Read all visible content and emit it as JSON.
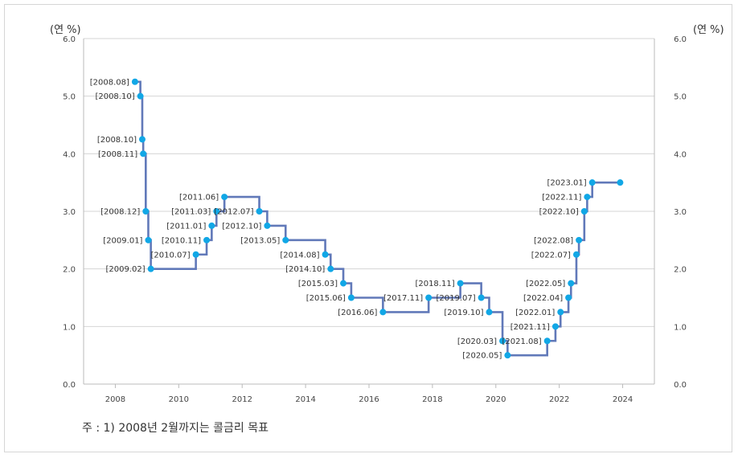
{
  "unit_left": "(연 %)",
  "unit_right": "(연 %)",
  "footnote": "주 : 1) 2008년 2월까지는 콜금리 목표",
  "colors": {
    "line": "#6179b9",
    "point": "#11a7e6",
    "grid": "#d4d4d4",
    "axis": "#bbbbbb"
  },
  "chart_data": {
    "type": "line",
    "step": true,
    "xlim": [
      2007,
      2025
    ],
    "ylim": [
      0,
      6
    ],
    "x_ticks": [
      "2008",
      "2010",
      "2012",
      "2014",
      "2016",
      "2018",
      "2020",
      "2022",
      "2024"
    ],
    "y_ticks": [
      "0.0",
      "1.0",
      "2.0",
      "3.0",
      "4.0",
      "5.0",
      "6.0"
    ],
    "grid": true,
    "points": [
      {
        "label": "[2008.08]",
        "x": 2008.62,
        "y": 5.25
      },
      {
        "label": "[2008.10]",
        "x": 2008.79,
        "y": 5.0
      },
      {
        "label": "[2008.10]",
        "x": 2008.85,
        "y": 4.25
      },
      {
        "label": "[2008.11]",
        "x": 2008.88,
        "y": 4.0
      },
      {
        "label": "[2008.12]",
        "x": 2008.96,
        "y": 3.0
      },
      {
        "label": "[2009.01]",
        "x": 2009.04,
        "y": 2.5
      },
      {
        "label": "[2009.02]",
        "x": 2009.12,
        "y": 2.0
      },
      {
        "label": "[2010.07]",
        "x": 2010.54,
        "y": 2.25
      },
      {
        "label": "[2010.11]",
        "x": 2010.88,
        "y": 2.5
      },
      {
        "label": "[2011.01]",
        "x": 2011.04,
        "y": 2.75
      },
      {
        "label": "[2011.03]",
        "x": 2011.19,
        "y": 3.0
      },
      {
        "label": "[2011.06]",
        "x": 2011.44,
        "y": 3.25
      },
      {
        "label": "[2012.07]",
        "x": 2012.54,
        "y": 3.0
      },
      {
        "label": "[2012.10]",
        "x": 2012.79,
        "y": 2.75
      },
      {
        "label": "[2013.05]",
        "x": 2013.37,
        "y": 2.5
      },
      {
        "label": "[2014.08]",
        "x": 2014.62,
        "y": 2.25
      },
      {
        "label": "[2014.10]",
        "x": 2014.79,
        "y": 2.0
      },
      {
        "label": "[2015.03]",
        "x": 2015.19,
        "y": 1.75
      },
      {
        "label": "[2015.06]",
        "x": 2015.44,
        "y": 1.5
      },
      {
        "label": "[2016.06]",
        "x": 2016.44,
        "y": 1.25
      },
      {
        "label": "[2017.11]",
        "x": 2017.88,
        "y": 1.5
      },
      {
        "label": "[2018.11]",
        "x": 2018.88,
        "y": 1.75
      },
      {
        "label": "[2019.07]",
        "x": 2019.54,
        "y": 1.5
      },
      {
        "label": "[2019.10]",
        "x": 2019.79,
        "y": 1.25
      },
      {
        "label": "[2020.03]",
        "x": 2020.21,
        "y": 0.75
      },
      {
        "label": "[2020.05]",
        "x": 2020.37,
        "y": 0.5
      },
      {
        "label": "[2021.08]",
        "x": 2021.62,
        "y": 0.75
      },
      {
        "label": "[2021.11]",
        "x": 2021.88,
        "y": 1.0
      },
      {
        "label": "[2022.01]",
        "x": 2022.04,
        "y": 1.25
      },
      {
        "label": "[2022.04]",
        "x": 2022.29,
        "y": 1.5
      },
      {
        "label": "[2022.05]",
        "x": 2022.37,
        "y": 1.75
      },
      {
        "label": "[2022.07]",
        "x": 2022.54,
        "y": 2.25
      },
      {
        "label": "[2022.08]",
        "x": 2022.62,
        "y": 2.5
      },
      {
        "label": "[2022.10]",
        "x": 2022.79,
        "y": 3.0
      },
      {
        "label": "[2022.11]",
        "x": 2022.88,
        "y": 3.25
      },
      {
        "label": "[2023.01]",
        "x": 2023.04,
        "y": 3.5
      },
      {
        "label": "",
        "x": 2023.92,
        "y": 3.5
      }
    ]
  }
}
